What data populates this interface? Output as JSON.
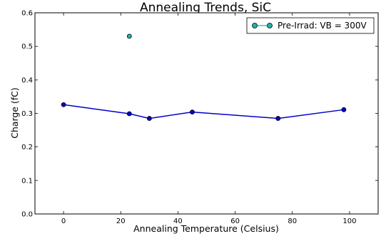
{
  "chart_data": {
    "type": "line",
    "title": "Annealing Trends, SiC",
    "xlabel": "Annealing Temperature (Celsius)",
    "ylabel": "Charge (fC)",
    "xlim": [
      -10,
      110
    ],
    "ylim": [
      0.0,
      0.6
    ],
    "xticks": [
      0,
      20,
      40,
      60,
      80,
      100
    ],
    "yticks": [
      0.0,
      0.1,
      0.2,
      0.3,
      0.4,
      0.5,
      0.6
    ],
    "xtick_labels": [
      "0",
      "20",
      "40",
      "60",
      "80",
      "100"
    ],
    "ytick_labels": [
      "0.0",
      "0.1",
      "0.2",
      "0.3",
      "0.4",
      "0.5",
      "0.6"
    ],
    "grid": false,
    "legend_position": "top-right",
    "series": [
      {
        "name": "Pre-Irrad: VB = 300V",
        "color": "#20b2aa",
        "line_color": "#20b2aa",
        "marker": "circle",
        "x": [
          23
        ],
        "y": [
          0.53
        ]
      },
      {
        "color": "#0000cc",
        "line_color": "#0000cc",
        "marker": "circle",
        "x": [
          0,
          23,
          30,
          45,
          75,
          98
        ],
        "y": [
          0.326,
          0.299,
          0.285,
          0.304,
          0.285,
          0.311
        ]
      }
    ]
  }
}
